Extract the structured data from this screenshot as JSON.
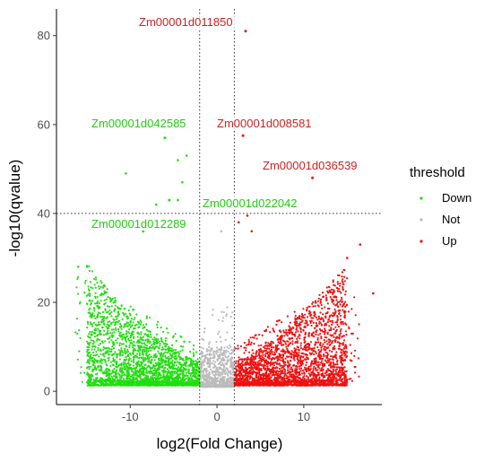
{
  "chart_data": {
    "type": "scatter",
    "title": "",
    "xlabel": "log2(Fold Change)",
    "ylabel": "-log10(qvalue)",
    "xlim": [
      -18.5,
      19
    ],
    "ylim": [
      -3,
      86
    ],
    "x_ticks": [
      -10,
      0,
      10
    ],
    "y_ticks": [
      0,
      20,
      40,
      60,
      80
    ],
    "x_tick_labels": [
      "-10",
      "0",
      "10"
    ],
    "y_tick_labels": [
      "0",
      "20",
      "40",
      "60",
      "80"
    ],
    "thresholds": {
      "fold_change": [
        -2,
        2
      ],
      "qvalue": 40
    },
    "grid": false,
    "colors": {
      "Down": "#22dd11",
      "Not": "#bbbbbb",
      "Up": "#ee1111"
    },
    "legend": {
      "title": "threshold",
      "position": "right",
      "entries": [
        {
          "name": "Down",
          "color": "#22dd11"
        },
        {
          "name": "Not",
          "color": "#bbbbbb"
        },
        {
          "name": "Up",
          "color": "#ee1111"
        }
      ]
    },
    "labeled_points": [
      {
        "label": "Zm00001d011850",
        "x": 3.3,
        "y": 81,
        "group": "Up"
      },
      {
        "label": "Zm00001d042585",
        "x": -6,
        "y": 57,
        "group": "Down"
      },
      {
        "label": "Zm00001d008581",
        "x": 3,
        "y": 57.5,
        "group": "Up"
      },
      {
        "label": "Zm00001d036539",
        "x": 11,
        "y": 48,
        "group": "Up"
      },
      {
        "label": "Zm00001d022042",
        "x": -5.5,
        "y": 43,
        "group": "Down"
      },
      {
        "label": "Zm00001d012289",
        "x": -8.5,
        "y": 36,
        "group": "Down"
      }
    ],
    "highlight_points": [
      {
        "x": -10.5,
        "y": 49,
        "group": "Down"
      },
      {
        "x": -4,
        "y": 47,
        "group": "Down"
      },
      {
        "x": -4.5,
        "y": 52,
        "group": "Down"
      },
      {
        "x": -3.5,
        "y": 53,
        "group": "Down"
      },
      {
        "x": -7,
        "y": 42,
        "group": "Down"
      },
      {
        "x": -4.5,
        "y": 43,
        "group": "Down"
      },
      {
        "x": -12,
        "y": 37,
        "group": "Down"
      },
      {
        "x": 2.5,
        "y": 38,
        "group": "Up"
      },
      {
        "x": 3.5,
        "y": 39.5,
        "group": "Up"
      },
      {
        "x": 4,
        "y": 36,
        "group": "Up"
      },
      {
        "x": 16.5,
        "y": 33,
        "group": "Up"
      },
      {
        "x": 15,
        "y": 30,
        "group": "Up"
      },
      {
        "x": -16,
        "y": 28,
        "group": "Down"
      },
      {
        "x": 18,
        "y": 22,
        "group": "Up"
      },
      {
        "x": 0.5,
        "y": 36,
        "group": "Not"
      },
      {
        "x": -0.5,
        "y": 41,
        "group": "Not"
      }
    ],
    "cloud": {
      "description_groups": [
        "Down",
        "Not",
        "Up"
      ],
      "down_x_range": [
        -15,
        -2
      ],
      "up_x_range": [
        2,
        17.5
      ],
      "not_x_range": [
        -2,
        2
      ]
    }
  }
}
